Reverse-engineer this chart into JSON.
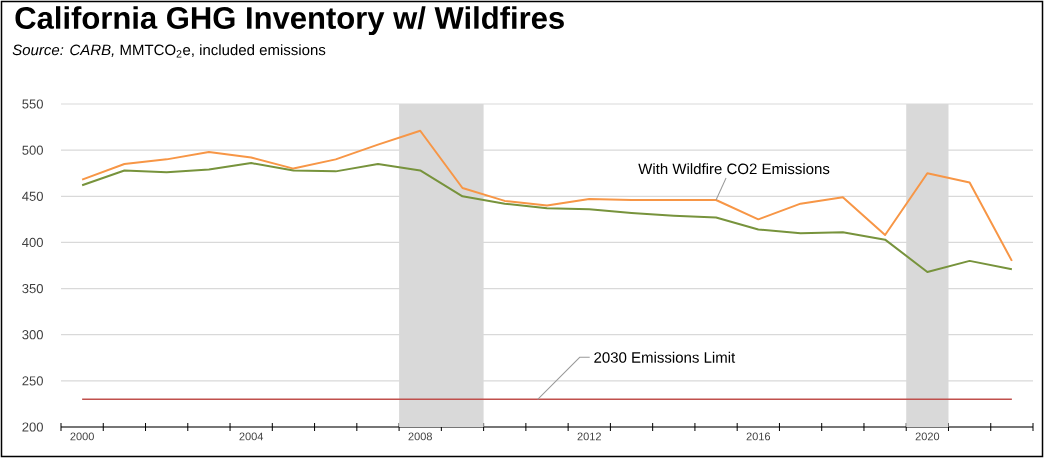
{
  "chart_data": {
    "type": "line",
    "title": "California GHG Inventory w/ Wildfires",
    "subtitle": "*Source:  CARB,* MMTCO$_{2}$e, included emissions",
    "x": [
      2000,
      2001,
      2002,
      2003,
      2004,
      2005,
      2006,
      2007,
      2008,
      2009,
      2010,
      2011,
      2012,
      2013,
      2014,
      2015,
      2016,
      2017,
      2018,
      2019,
      2020,
      2021,
      2022
    ],
    "series": [
      {
        "name": "With Wildfire CO2 Emissions",
        "color": "#f79646",
        "values": [
          468,
          485,
          490,
          498,
          492,
          480,
          490,
          506,
          521,
          459,
          445,
          440,
          447,
          446,
          446,
          446,
          425,
          442,
          449,
          408,
          475,
          465,
          380
        ]
      },
      {
        "color": "#77933c",
        "values": [
          462,
          478,
          476,
          479,
          486,
          478,
          477,
          485,
          478,
          450,
          442,
          437,
          436,
          432,
          429,
          427,
          414,
          410,
          411,
          403,
          368,
          380,
          371
        ]
      }
    ],
    "xlim": [
      1999.5,
      2022.5
    ],
    "xticks": [
      {
        "value": 1999.5,
        "label": null
      },
      {
        "value": 2000.5,
        "label": null
      },
      {
        "value": 2001.5,
        "label": null
      },
      {
        "value": 2002.5,
        "label": null
      },
      {
        "value": 2003.5,
        "label": null
      },
      {
        "value": 2004.5,
        "label": null
      },
      {
        "value": 2005.5,
        "label": null
      },
      {
        "value": 2006.5,
        "label": null
      },
      {
        "value": 2007.5,
        "label": null
      },
      {
        "value": 2008.5,
        "label": null
      },
      {
        "value": 2009.5,
        "label": null
      },
      {
        "value": 2010.5,
        "label": null
      },
      {
        "value": 2011.5,
        "label": null
      },
      {
        "value": 2012.5,
        "label": null
      },
      {
        "value": 2013.5,
        "label": null
      },
      {
        "value": 2014.5,
        "label": null
      },
      {
        "value": 2015.5,
        "label": null
      },
      {
        "value": 2016.5,
        "label": null
      },
      {
        "value": 2017.5,
        "label": null
      },
      {
        "value": 2018.5,
        "label": null
      },
      {
        "value": 2019.5,
        "label": null
      },
      {
        "value": 2020.5,
        "label": null
      },
      {
        "value": 2021.5,
        "label": null
      },
      {
        "value": 2022.5,
        "label": null
      },
      2000,
      2004,
      2008,
      2012,
      2016,
      2020
    ],
    "ylim": [
      200,
      550
    ],
    "yticks": [
      200,
      250,
      300,
      350,
      400,
      450,
      500,
      550
    ],
    "grid": "y",
    "bands": [
      {
        "axis": "x",
        "from": 2007.5,
        "to": 2009.5,
        "color": "#d9d9d9"
      },
      {
        "axis": "x",
        "from": 2019.5,
        "to": 2020.5,
        "color": "#d9d9d9"
      }
    ],
    "ref_lines": [
      {
        "axis": "y",
        "value": 230,
        "label": "2030 Emissions Limit",
        "color": "#c0504d"
      }
    ]
  }
}
